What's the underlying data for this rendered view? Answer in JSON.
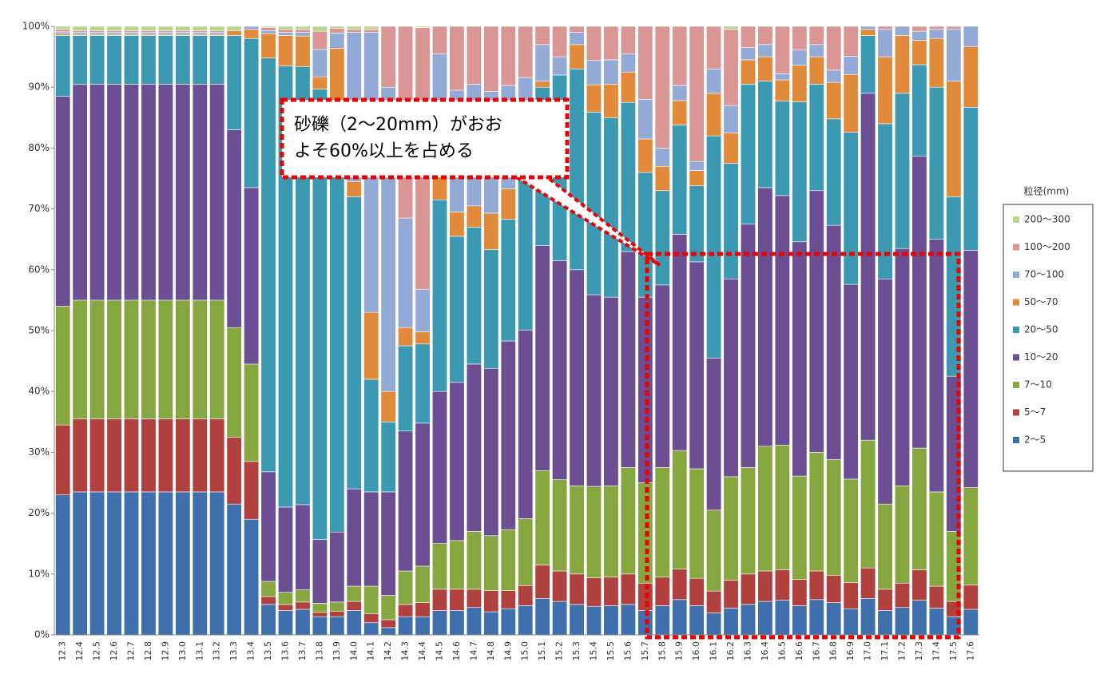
{
  "chart_data": {
    "type": "stacked-bar",
    "categories": [
      "12.3",
      "12.4",
      "12.5",
      "12.6",
      "12.7",
      "12.8",
      "12.9",
      "13.0",
      "13.1",
      "13.2",
      "13.3",
      "13.4",
      "13.5",
      "13.6",
      "13.7",
      "13.8",
      "13.9",
      "14.0",
      "14.1",
      "14.2",
      "14.3",
      "14.4",
      "14.5",
      "14.6",
      "14.7",
      "14.8",
      "14.9",
      "15.0",
      "15.1",
      "15.2",
      "15.3",
      "15.4",
      "15.5",
      "15.6",
      "15.7",
      "15.8",
      "15.9",
      "16.0",
      "16.1",
      "16.2",
      "16.3",
      "16.4",
      "16.5",
      "16.6",
      "16.7",
      "16.8",
      "16.9",
      "17.0",
      "17.1",
      "17.2",
      "17.3",
      "17.4",
      "17.5",
      "17.6"
    ],
    "series": [
      {
        "name": "2～5",
        "color": "#3f6fad",
        "values": [
          23,
          23.5,
          23.5,
          23.5,
          23.5,
          23.5,
          23.5,
          23.5,
          23.5,
          23.5,
          21.5,
          19,
          5,
          4,
          4.2,
          3,
          3,
          4,
          2,
          1.2,
          3,
          3,
          4,
          4,
          4.5,
          3.8,
          4.3,
          4.8,
          6,
          5.5,
          5,
          4.7,
          4.8,
          5,
          4,
          4.8,
          5.8,
          4.8,
          3.6,
          4.4,
          5,
          5.5,
          5.7,
          4.8,
          5.8,
          5.3,
          4.3,
          6,
          4,
          4.5,
          5.7,
          4.4,
          3,
          4.2
        ]
      },
      {
        "name": "5～7",
        "color": "#b0413e",
        "values": [
          11.5,
          12,
          12,
          12,
          12,
          12,
          12,
          12,
          12,
          12,
          11,
          9.5,
          1.3,
          1,
          1.2,
          0.7,
          0.9,
          1.5,
          1.5,
          1.3,
          2,
          2.3,
          3.5,
          3.5,
          3,
          3.5,
          3,
          3.3,
          5.5,
          5,
          5,
          4.7,
          4.7,
          5,
          4.5,
          4.7,
          5,
          4.5,
          3.6,
          4.6,
          5,
          5,
          5,
          4.3,
          4.7,
          4.5,
          4.3,
          5,
          3.5,
          4,
          5,
          3.6,
          2.5,
          4
        ]
      },
      {
        "name": "7～10",
        "color": "#86a640",
        "values": [
          19.5,
          19.5,
          19.5,
          19.5,
          19.5,
          19.5,
          19.5,
          19.5,
          19.5,
          19.5,
          18,
          16,
          2.5,
          2,
          2,
          1.5,
          1.5,
          2.5,
          4.5,
          4,
          5.5,
          6,
          7.5,
          8,
          9.5,
          9,
          10,
          11,
          15.5,
          15,
          14.5,
          15,
          15,
          17.5,
          16.5,
          18,
          19.5,
          18,
          13.3,
          17,
          17.5,
          20.5,
          20.5,
          17,
          19.5,
          19,
          17,
          21,
          14,
          16,
          20,
          15.5,
          11.5,
          16
        ]
      },
      {
        "name": "10～20",
        "color": "#6b4f92",
        "values": [
          34.5,
          35.5,
          35.5,
          35.5,
          35.5,
          35.5,
          35.5,
          35.5,
          35.5,
          35.5,
          32.5,
          29,
          18,
          14,
          14,
          10.5,
          11.5,
          16,
          15.5,
          17,
          23,
          23.5,
          25,
          26,
          27.5,
          27.5,
          31,
          31,
          37,
          36,
          35.5,
          31.5,
          31,
          35.5,
          30.5,
          30,
          35.5,
          34,
          25,
          32.5,
          40,
          42.5,
          41,
          38.5,
          43,
          38.5,
          32,
          57,
          37,
          39,
          48,
          41.5,
          25.5,
          39
        ]
      },
      {
        "name": "20～50",
        "color": "#3b99b2",
        "values": [
          10,
          8,
          8,
          8,
          8,
          8,
          8,
          8,
          8,
          8,
          15.5,
          24.5,
          68,
          72.5,
          72,
          74,
          70,
          48,
          18.5,
          11.5,
          14,
          13,
          31.5,
          24,
          22.5,
          19.5,
          20,
          31,
          26,
          30.5,
          33,
          30,
          29.5,
          24.5,
          20.5,
          15.5,
          18,
          12.5,
          36.5,
          19,
          23,
          17.5,
          15.5,
          23,
          17.5,
          17.5,
          25,
          9.5,
          25.5,
          25.5,
          15,
          25,
          29.5,
          23.5
        ]
      },
      {
        "name": "50～70",
        "color": "#e08a3a",
        "values": [
          0.3,
          0.2,
          0.2,
          0.2,
          0.2,
          0.2,
          0.2,
          0.2,
          0.2,
          0.2,
          0.8,
          1.5,
          4,
          5,
          5,
          2,
          9.5,
          2.5,
          11,
          5,
          3,
          2,
          4,
          4,
          3.5,
          6,
          5,
          3,
          1,
          0,
          4,
          4.5,
          5.5,
          5,
          5.5,
          4,
          4,
          2.5,
          7,
          5,
          4,
          4,
          3.5,
          6,
          4.5,
          6,
          9.5,
          1,
          11,
          9.5,
          4,
          8,
          19,
          10
        ]
      },
      {
        "name": "70～100",
        "color": "#93a9d6",
        "values": [
          0.3,
          0.3,
          0.3,
          0.3,
          0.3,
          0.3,
          0.3,
          0.3,
          0.3,
          0.3,
          0,
          0.5,
          0.5,
          0.5,
          0.6,
          4.5,
          2.5,
          24.5,
          46,
          50,
          18,
          7,
          20,
          20,
          20,
          20,
          17,
          7.5,
          6,
          3,
          2,
          4,
          4,
          3,
          6.5,
          3,
          2.5,
          1.5,
          4,
          4.5,
          2,
          2,
          1,
          2.5,
          2,
          2,
          3,
          0.5,
          4.5,
          1.5,
          1.5,
          1.5,
          8.5,
          3.3
        ]
      },
      {
        "name": "100～200",
        "color": "#d99694",
        "values": [
          0.4,
          0.3,
          0.3,
          0.3,
          0.3,
          0.3,
          0.3,
          0.3,
          0.3,
          0.3,
          0,
          0,
          0.5,
          0.5,
          0.5,
          3,
          0.8,
          0.5,
          0.5,
          10,
          31.5,
          43,
          4.5,
          10.5,
          9.5,
          10.7,
          9.7,
          8.4,
          3,
          5,
          1,
          5.6,
          5.5,
          4.5,
          12,
          20,
          9.7,
          22.2,
          7,
          12.5,
          3.5,
          3,
          7.8,
          3.9,
          3,
          7.2,
          4.9,
          0,
          0.5,
          0,
          0.8,
          0.5,
          0.5,
          0
        ]
      },
      {
        "name": "200～300",
        "color": "#b7d68c",
        "values": [
          0.5,
          0.7,
          0.7,
          0.7,
          0.7,
          0.7,
          0.7,
          0.7,
          0.7,
          0.7,
          0.7,
          0,
          0.2,
          0.5,
          0.5,
          0.8,
          0.3,
          0.5,
          0.5,
          0,
          0,
          0.2,
          0,
          0,
          0,
          0,
          0,
          0,
          0,
          0,
          0,
          0,
          0,
          0,
          0,
          0,
          0,
          0,
          0,
          0.5,
          0,
          0,
          0,
          0,
          0,
          0,
          0,
          0,
          0,
          0,
          0,
          0,
          0,
          0
        ]
      }
    ],
    "ylim": [
      0,
      100
    ],
    "yticks": [
      {
        "value": 0,
        "label": "0%"
      },
      {
        "value": 10,
        "label": "10%"
      },
      {
        "value": 20,
        "label": "20%"
      },
      {
        "value": 30,
        "label": "30%"
      },
      {
        "value": 40,
        "label": "40%"
      },
      {
        "value": 50,
        "label": "50%"
      },
      {
        "value": 60,
        "label": "60%"
      },
      {
        "value": 70,
        "label": "70%"
      },
      {
        "value": 80,
        "label": "80%"
      },
      {
        "value": 90,
        "label": "90%"
      },
      {
        "value": 100,
        "label": "100%"
      }
    ],
    "grid": false,
    "legend_title": "粒径(mm)",
    "legend_position": "right",
    "annotation": [
      "砂礫（2～20mm）がおお",
      "よそ60%以上を占める"
    ]
  }
}
